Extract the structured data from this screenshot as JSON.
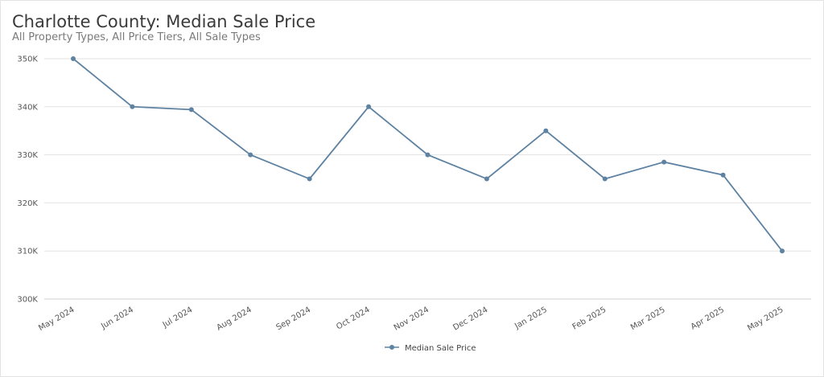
{
  "chart_data": {
    "type": "line",
    "title": "Charlotte County: Median Sale Price",
    "subtitle": "All Property Types, All Price Tiers, All Sale Types",
    "categories": [
      "May 2024",
      "Jun 2024",
      "Jul 2024",
      "Aug 2024",
      "Sep 2024",
      "Oct 2024",
      "Nov 2024",
      "Dec 2024",
      "Jan 2025",
      "Feb 2025",
      "Mar 2025",
      "Apr 2025",
      "May 2025"
    ],
    "series": [
      {
        "name": "Median Sale Price",
        "values": [
          350000,
          340000,
          339400,
          330000,
          325000,
          340000,
          330000,
          325000,
          335000,
          325000,
          328500,
          325800,
          310000
        ],
        "color": "#5e82a2"
      }
    ],
    "ylim": [
      300000,
      350000
    ],
    "yticks": [
      300000,
      310000,
      320000,
      330000,
      340000,
      350000
    ],
    "ytick_labels": [
      "300K",
      "310K",
      "320K",
      "330K",
      "340K",
      "350K"
    ],
    "grid": true,
    "legend_position": "bottom-center"
  }
}
